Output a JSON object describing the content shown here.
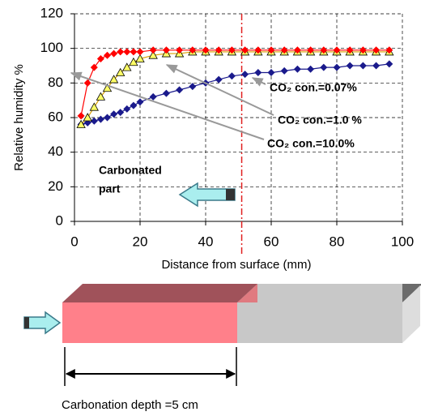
{
  "chart_data": {
    "type": "line",
    "xlabel": "Distance from surface (mm)",
    "ylabel": "Relative humidity %",
    "xlim": [
      0,
      100
    ],
    "ylim": [
      0,
      120
    ],
    "xticks": [
      0,
      20,
      40,
      60,
      80,
      100
    ],
    "yticks": [
      0,
      20,
      40,
      60,
      80,
      100,
      120
    ],
    "grid": true,
    "x": [
      2,
      4,
      6,
      8,
      10,
      12,
      14,
      16,
      18,
      20,
      24,
      28,
      32,
      36,
      40,
      44,
      48,
      52,
      56,
      60,
      64,
      68,
      72,
      76,
      80,
      84,
      88,
      92,
      96
    ],
    "series": [
      {
        "name": "CO₂ con.=0.07%",
        "color": "#1a1a8c",
        "marker": "diamond",
        "values": [
          56,
          57,
          58,
          59,
          60,
          62,
          63,
          65,
          67,
          69,
          72,
          74,
          76,
          78,
          80,
          82,
          84,
          85,
          86,
          86,
          87,
          88,
          88,
          89,
          89,
          90,
          90,
          90,
          91
        ]
      },
      {
        "name": "CO₂ con.=1.0 %",
        "color": "#ffff66",
        "marker": "triangle",
        "values": [
          56,
          60,
          66,
          72,
          77,
          82,
          86,
          89,
          92,
          94,
          96,
          97,
          97,
          98,
          98,
          98,
          98,
          98,
          98,
          98,
          98,
          98,
          98,
          98,
          98,
          98,
          98,
          98,
          98
        ]
      },
      {
        "name": "CO₂ con.=10.0%",
        "color": "#ff0000",
        "marker": "diamond",
        "values": [
          61,
          80,
          89,
          94,
          96,
          97,
          98,
          98,
          98,
          98,
          99,
          99,
          99,
          99,
          99,
          99,
          99,
          99,
          99,
          99,
          99,
          99,
          99,
          99,
          99,
          99,
          99,
          99,
          99
        ]
      }
    ],
    "carbonation_front": 51,
    "annotations": [
      "Carbonated",
      "part"
    ]
  },
  "diagram": {
    "caption": "Carbonation depth =5 cm"
  }
}
